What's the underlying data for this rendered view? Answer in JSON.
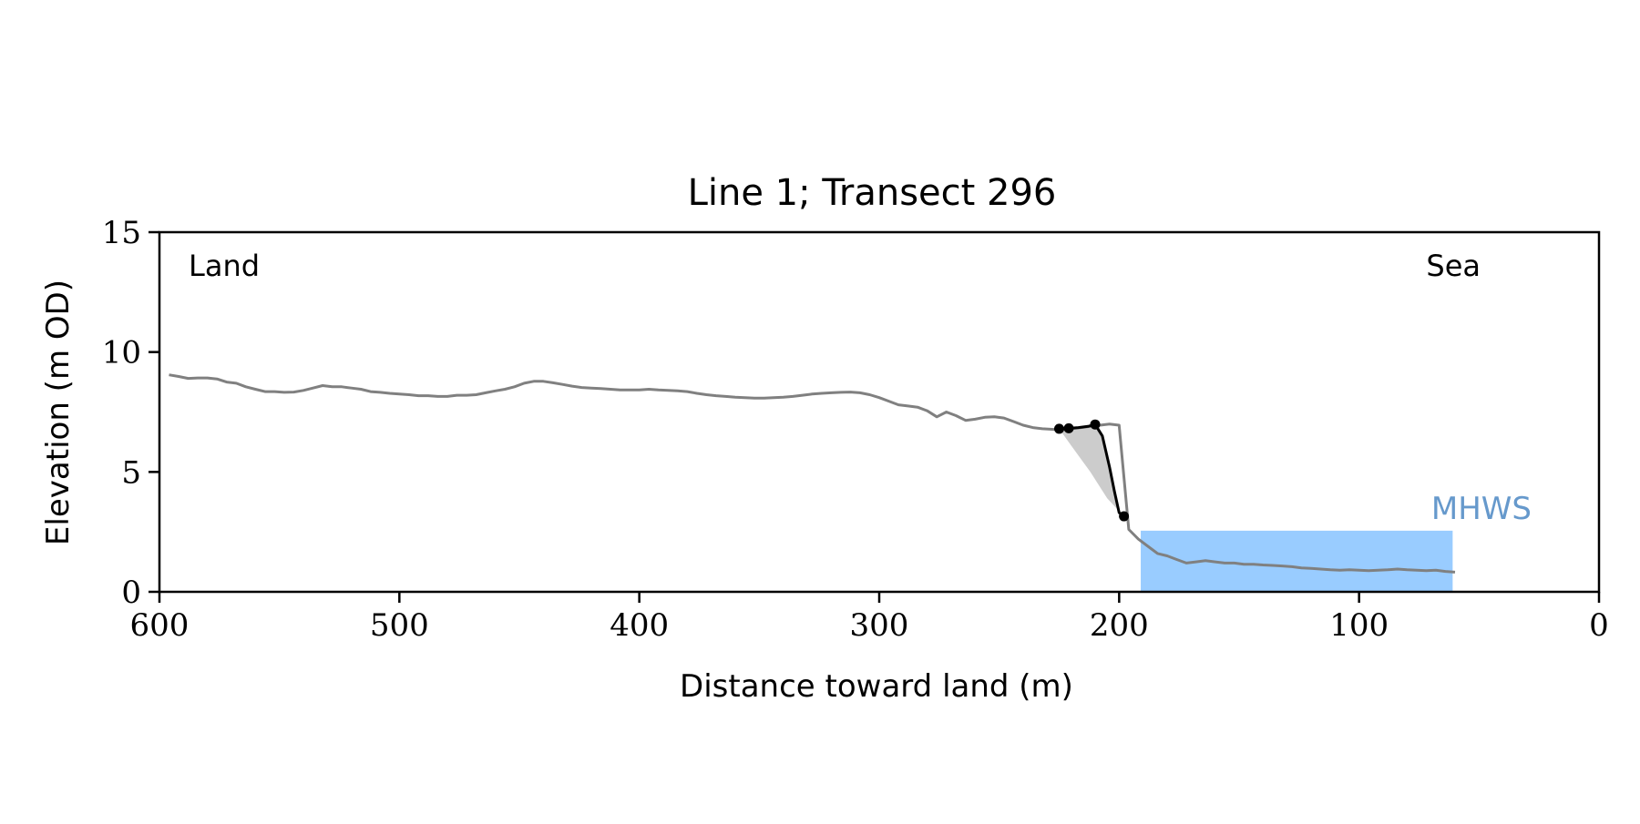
{
  "chart_data": {
    "type": "line",
    "title": "Line 1; Transect 296",
    "xlabel": "Distance toward land (m)",
    "ylabel": "Elevation (m OD)",
    "xlim": [
      600,
      0
    ],
    "ylim": [
      0,
      15
    ],
    "x_ticks": [
      600,
      500,
      400,
      300,
      200,
      100,
      0
    ],
    "y_ticks": [
      0,
      5,
      10,
      15
    ],
    "grid": false,
    "annotations": {
      "land": "Land",
      "sea": "Sea",
      "mhws": "MHWS"
    },
    "mhws_band": {
      "x_from": 191,
      "x_to": 61,
      "y_top": 2.55,
      "color": "#99ccff",
      "label_color": "#6699cc"
    },
    "profile": {
      "color": "#808080",
      "x": [
        596,
        592,
        588,
        584,
        580,
        576,
        572,
        568,
        564,
        560,
        556,
        552,
        548,
        544,
        540,
        536,
        532,
        528,
        524,
        520,
        516,
        512,
        508,
        504,
        500,
        496,
        492,
        488,
        484,
        480,
        476,
        472,
        468,
        464,
        460,
        456,
        452,
        448,
        444,
        440,
        436,
        432,
        428,
        424,
        420,
        416,
        412,
        408,
        404,
        400,
        396,
        392,
        388,
        384,
        380,
        376,
        372,
        368,
        364,
        360,
        356,
        352,
        348,
        344,
        340,
        336,
        332,
        328,
        324,
        320,
        316,
        312,
        308,
        304,
        300,
        296,
        292,
        288,
        284,
        280,
        276,
        272,
        268,
        264,
        260,
        256,
        252,
        248,
        244,
        240,
        236,
        232,
        228,
        224,
        220,
        216,
        212,
        208,
        204,
        200,
        196,
        192,
        188,
        184,
        180,
        176,
        172,
        168,
        164,
        160,
        156,
        152,
        148,
        144,
        140,
        136,
        132,
        128,
        124,
        120,
        116,
        112,
        108,
        104,
        100,
        96,
        92,
        88,
        84,
        80,
        76,
        72,
        68,
        64,
        60
      ],
      "y": [
        9.05,
        8.98,
        8.9,
        8.92,
        8.92,
        8.88,
        8.75,
        8.7,
        8.55,
        8.45,
        8.35,
        8.35,
        8.32,
        8.33,
        8.4,
        8.5,
        8.6,
        8.55,
        8.55,
        8.5,
        8.45,
        8.35,
        8.32,
        8.28,
        8.25,
        8.22,
        8.18,
        8.18,
        8.15,
        8.15,
        8.2,
        8.2,
        8.22,
        8.3,
        8.38,
        8.45,
        8.55,
        8.7,
        8.78,
        8.78,
        8.72,
        8.65,
        8.58,
        8.52,
        8.5,
        8.48,
        8.45,
        8.42,
        8.42,
        8.42,
        8.45,
        8.42,
        8.4,
        8.38,
        8.35,
        8.28,
        8.22,
        8.18,
        8.15,
        8.12,
        8.1,
        8.08,
        8.08,
        8.1,
        8.12,
        8.15,
        8.2,
        8.25,
        8.28,
        8.3,
        8.32,
        8.33,
        8.3,
        8.22,
        8.1,
        7.95,
        7.8,
        7.75,
        7.7,
        7.55,
        7.3,
        7.5,
        7.35,
        7.15,
        7.2,
        7.28,
        7.3,
        7.25,
        7.1,
        6.95,
        6.85,
        6.8,
        6.78,
        6.75,
        6.8,
        6.85,
        6.9,
        6.95,
        7.0,
        6.95,
        2.6,
        2.2,
        1.9,
        1.6,
        1.5,
        1.35,
        1.2,
        1.25,
        1.3,
        1.25,
        1.2,
        1.2,
        1.15,
        1.15,
        1.12,
        1.1,
        1.08,
        1.05,
        1.0,
        0.98,
        0.95,
        0.92,
        0.9,
        0.92,
        0.9,
        0.88,
        0.9,
        0.92,
        0.95,
        0.92,
        0.9,
        0.88,
        0.9,
        0.85,
        0.82
      ]
    },
    "cliff": {
      "color": "#000000",
      "x": [
        225,
        221,
        217,
        213,
        210,
        207,
        204,
        202,
        200,
        198
      ],
      "y": [
        6.8,
        6.82,
        6.85,
        6.9,
        6.98,
        6.5,
        5.2,
        4.2,
        3.3,
        3.15
      ]
    },
    "cliff_points": {
      "color": "#000000",
      "x": [
        225,
        221,
        210,
        198
      ],
      "y": [
        6.8,
        6.82,
        6.98,
        3.15
      ]
    },
    "erosion_polygon": {
      "color": "#cccccc",
      "x": [
        225,
        221,
        210,
        207,
        204,
        202,
        200,
        198,
        205,
        212,
        220,
        225
      ],
      "y": [
        6.8,
        6.82,
        6.98,
        6.5,
        5.2,
        4.2,
        3.3,
        3.15,
        3.9,
        5.0,
        6.1,
        6.8
      ]
    }
  }
}
